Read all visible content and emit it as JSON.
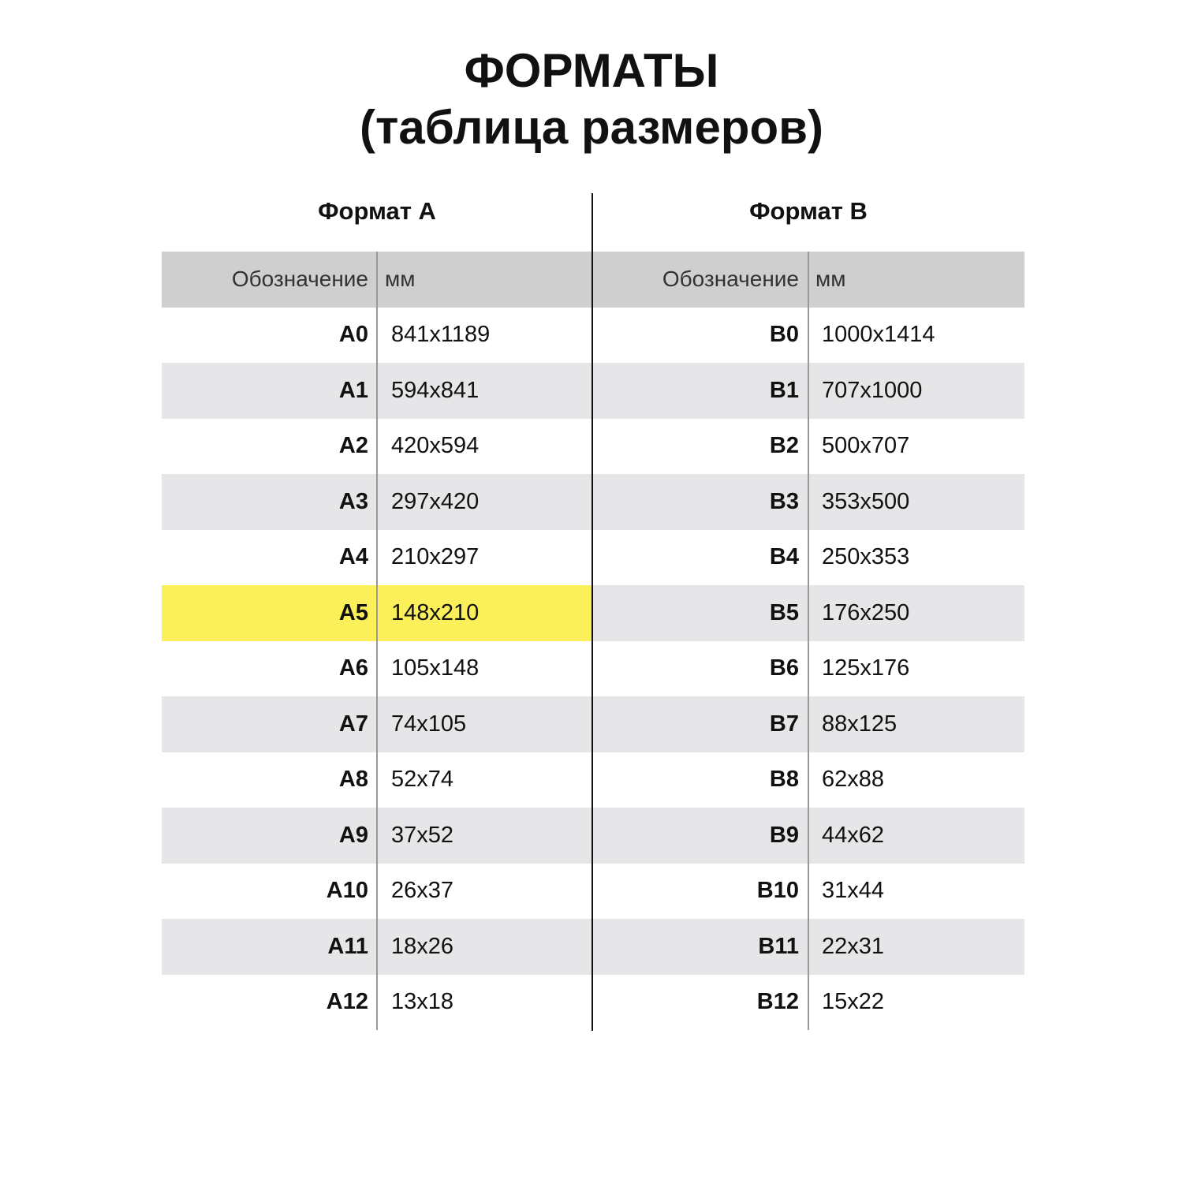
{
  "title": {
    "line1": "ФОРМАТЫ",
    "line2": "(таблица размеров)"
  },
  "colors": {
    "header_bg": "#cfcfcf",
    "stripe_bg": "#e6e6e8",
    "highlight": "#fcf05a"
  },
  "tables": [
    {
      "heading": "Формат А",
      "columns": [
        "Обозначение",
        "мм"
      ],
      "highlighted": "A5",
      "rows": [
        [
          "A0",
          "841x1189"
        ],
        [
          "A1",
          "594x841"
        ],
        [
          "A2",
          "420x594"
        ],
        [
          "A3",
          "297x420"
        ],
        [
          "A4",
          "210x297"
        ],
        [
          "A5",
          "148x210"
        ],
        [
          "A6",
          "105x148"
        ],
        [
          "A7",
          "74x105"
        ],
        [
          "A8",
          "52x74"
        ],
        [
          "A9",
          "37x52"
        ],
        [
          "A10",
          "26x37"
        ],
        [
          "A11",
          "18x26"
        ],
        [
          "A12",
          "13x18"
        ]
      ]
    },
    {
      "heading": "Формат В",
      "columns": [
        "Обозначение",
        "мм"
      ],
      "rows": [
        [
          "B0",
          "1000x1414"
        ],
        [
          "B1",
          "707x1000"
        ],
        [
          "B2",
          "500x707"
        ],
        [
          "B3",
          "353x500"
        ],
        [
          "B4",
          "250x353"
        ],
        [
          "B5",
          "176x250"
        ],
        [
          "B6",
          "125x176"
        ],
        [
          "B7",
          "88x125"
        ],
        [
          "B8",
          "62x88"
        ],
        [
          "B9",
          "44x62"
        ],
        [
          "B10",
          "31x44"
        ],
        [
          "B11",
          "22x31"
        ],
        [
          "B12",
          "15x22"
        ]
      ]
    }
  ]
}
